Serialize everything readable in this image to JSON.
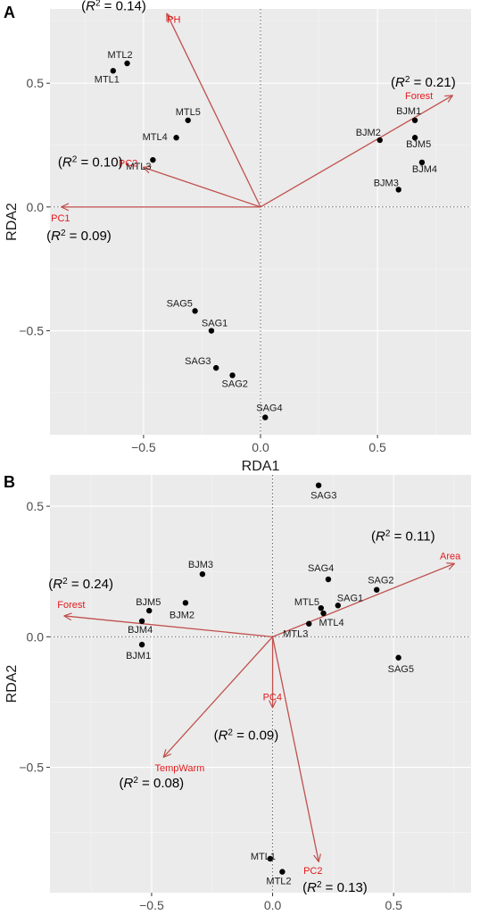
{
  "chart_data": [
    {
      "panel": "A",
      "type": "scatter",
      "xlabel": "RDA1",
      "ylabel": "RDA2",
      "xlim": [
        -0.9,
        0.9
      ],
      "ylim": [
        -0.92,
        0.8
      ],
      "xticks": [
        -0.5,
        0.0,
        0.5
      ],
      "yticks": [
        -0.5,
        0.0,
        0.5
      ],
      "xtick_labels": [
        "−0.5",
        "0.0",
        "0.5"
      ],
      "ytick_labels": [
        "−0.5",
        "0.0",
        "0.5"
      ],
      "grid": true,
      "points": [
        {
          "label": "MTL2",
          "x": -0.57,
          "y": 0.58
        },
        {
          "label": "MTL1",
          "x": -0.63,
          "y": 0.55
        },
        {
          "label": "MTL5",
          "x": -0.31,
          "y": 0.35
        },
        {
          "label": "MTL4",
          "x": -0.36,
          "y": 0.28
        },
        {
          "label": "MTL3",
          "x": -0.46,
          "y": 0.19
        },
        {
          "label": "BJM1",
          "x": 0.66,
          "y": 0.35
        },
        {
          "label": "BJM2",
          "x": 0.51,
          "y": 0.27
        },
        {
          "label": "BJM5",
          "x": 0.66,
          "y": 0.28
        },
        {
          "label": "BJM4",
          "x": 0.69,
          "y": 0.18
        },
        {
          "label": "BJM3",
          "x": 0.59,
          "y": 0.07
        },
        {
          "label": "SAG5",
          "x": -0.28,
          "y": -0.42
        },
        {
          "label": "SAG1",
          "x": -0.21,
          "y": -0.5
        },
        {
          "label": "SAG3",
          "x": -0.19,
          "y": -0.65
        },
        {
          "label": "SAG2",
          "x": -0.12,
          "y": -0.68
        },
        {
          "label": "SAG4",
          "x": 0.02,
          "y": -0.85
        }
      ],
      "arrows": [
        {
          "label": "PH",
          "x": -0.4,
          "y": 0.78,
          "r2": "0.14"
        },
        {
          "label": "Forest",
          "x": 0.82,
          "y": 0.45,
          "r2": "0.21"
        },
        {
          "label": "PC2",
          "x": -0.5,
          "y": 0.16,
          "r2": "0.10"
        },
        {
          "label": "PC1",
          "x": -0.85,
          "y": 0.0,
          "r2": "0.09"
        }
      ]
    },
    {
      "panel": "B",
      "type": "scatter",
      "xlabel": "RDA1",
      "ylabel": "RDA2",
      "xlim": [
        -0.92,
        0.82
      ],
      "ylim": [
        -0.98,
        0.62
      ],
      "xticks": [
        -0.5,
        0.0,
        0.5
      ],
      "yticks": [
        -0.5,
        0.0,
        0.5
      ],
      "xtick_labels": [
        "−0.5",
        "0.0",
        "0.5"
      ],
      "ytick_labels": [
        "−0.5",
        "0.0",
        "0.5"
      ],
      "grid": true,
      "points": [
        {
          "label": "SAG3",
          "x": 0.19,
          "y": 0.58
        },
        {
          "label": "SAG4",
          "x": 0.23,
          "y": 0.22
        },
        {
          "label": "SAG2",
          "x": 0.43,
          "y": 0.18
        },
        {
          "label": "SAG1",
          "x": 0.27,
          "y": 0.12
        },
        {
          "label": "MTL5",
          "x": 0.2,
          "y": 0.11
        },
        {
          "label": "MTL4",
          "x": 0.21,
          "y": 0.09
        },
        {
          "label": "MTL3",
          "x": 0.15,
          "y": 0.05
        },
        {
          "label": "SAG5",
          "x": 0.52,
          "y": -0.08
        },
        {
          "label": "BJM3",
          "x": -0.29,
          "y": 0.24
        },
        {
          "label": "BJM2",
          "x": -0.36,
          "y": 0.13
        },
        {
          "label": "BJM5",
          "x": -0.51,
          "y": 0.1
        },
        {
          "label": "BJM4",
          "x": -0.54,
          "y": 0.06
        },
        {
          "label": "BJM1",
          "x": -0.54,
          "y": -0.03
        },
        {
          "label": "MTL1",
          "x": -0.01,
          "y": -0.85
        },
        {
          "label": "MTL2",
          "x": 0.04,
          "y": -0.9
        }
      ],
      "arrows": [
        {
          "label": "Area",
          "x": 0.75,
          "y": 0.28,
          "r2": "0.11"
        },
        {
          "label": "Forest",
          "x": -0.86,
          "y": 0.08,
          "r2": "0.24"
        },
        {
          "label": "PC4",
          "x": 0.0,
          "y": -0.27,
          "r2": "0.09"
        },
        {
          "label": "TempWarm",
          "x": -0.45,
          "y": -0.46,
          "r2": "0.08"
        },
        {
          "label": "PC2",
          "x": 0.19,
          "y": -0.86,
          "r2": "0.13"
        }
      ]
    }
  ]
}
